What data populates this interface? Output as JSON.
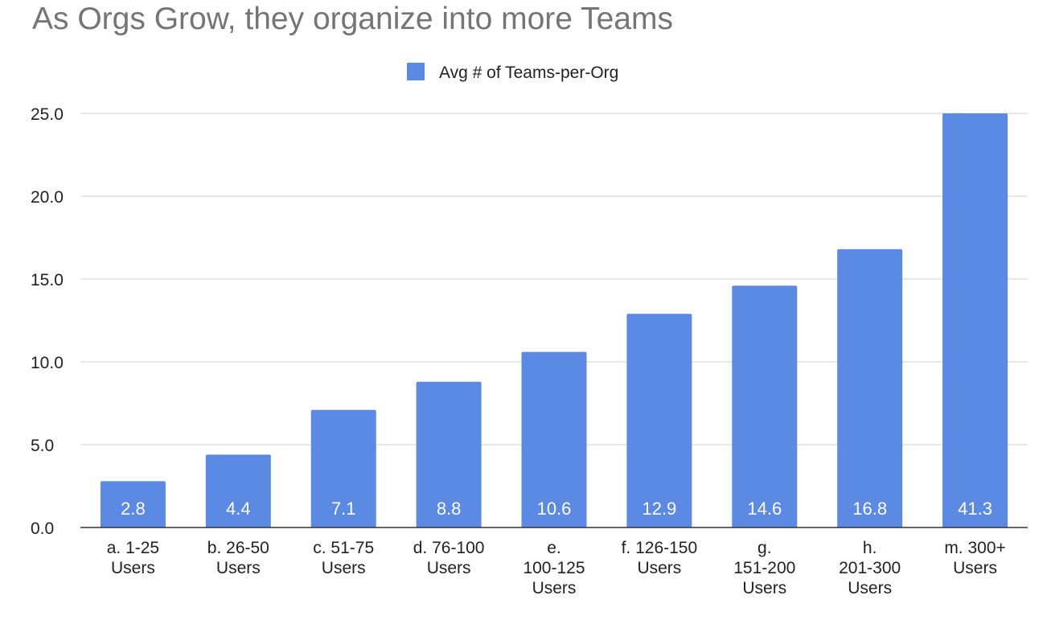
{
  "chart_data": {
    "type": "bar",
    "title": "As Orgs Grow, they organize into more Teams",
    "xlabel": "",
    "ylabel": "",
    "categories": [
      [
        "a. 1-25",
        "Users"
      ],
      [
        "b. 26-50",
        "Users"
      ],
      [
        "c. 51-75",
        "Users"
      ],
      [
        "d. 76-100",
        "Users"
      ],
      [
        "e.",
        "100-125",
        "Users"
      ],
      [
        "f. 126-150",
        "Users"
      ],
      [
        "g.",
        "151-200",
        "Users"
      ],
      [
        "h.",
        "201-300",
        "Users"
      ],
      [
        "m. 300+",
        "Users"
      ]
    ],
    "series": [
      {
        "name": "Avg # of Teams-per-Org",
        "color": "#5b8ae5",
        "values": [
          2.8,
          4.4,
          7.1,
          8.8,
          10.6,
          12.9,
          14.6,
          16.8,
          41.3
        ],
        "data_labels": [
          "2.8",
          "4.4",
          "7.1",
          "8.8",
          "10.6",
          "12.9",
          "14.6",
          "16.8",
          "41.3"
        ]
      }
    ],
    "ylim": [
      0,
      25
    ],
    "yticks": [
      "0.0",
      "5.0",
      "10.0",
      "15.0",
      "20.0",
      "25.0"
    ],
    "grid": true,
    "legend_position": "top"
  }
}
